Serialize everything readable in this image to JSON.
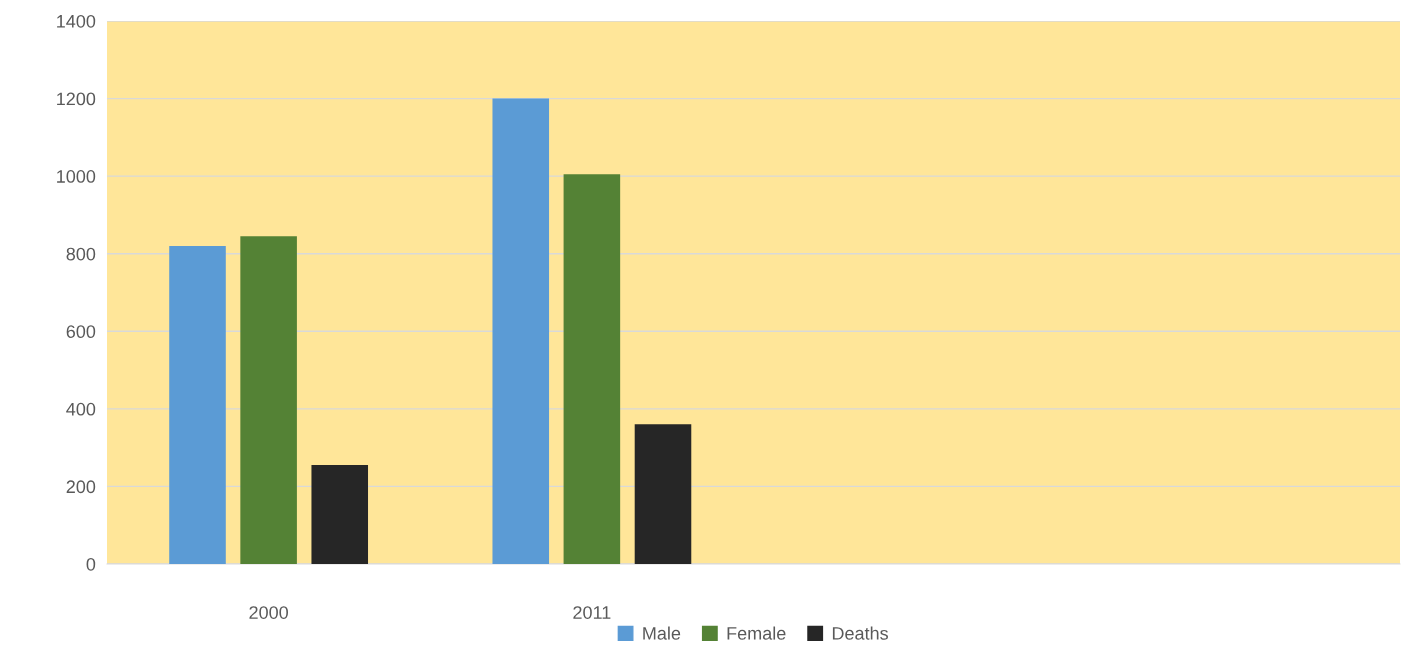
{
  "chart_data": {
    "type": "bar",
    "categories": [
      "2000",
      "2011",
      null,
      null
    ],
    "series": [
      {
        "name": "Male",
        "color": "#5b9bd5",
        "values": [
          820,
          1200,
          null,
          null
        ]
      },
      {
        "name": "Female",
        "color": "#548235",
        "values": [
          845,
          1005,
          null,
          null
        ]
      },
      {
        "name": "Deaths",
        "color": "#262626",
        "values": [
          255,
          360,
          null,
          null
        ]
      }
    ],
    "ylim": [
      0,
      1400
    ],
    "yticks": [
      0,
      200,
      400,
      600,
      800,
      1000,
      1200,
      1400
    ],
    "grid": "y",
    "legend": "bottom"
  }
}
